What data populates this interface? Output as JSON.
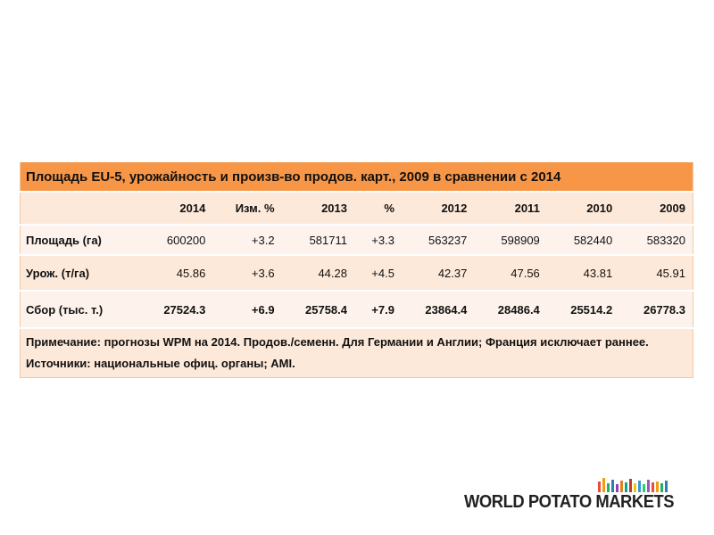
{
  "table": {
    "title": "Площадь EU-5, урожайность и произв-во продов. карт., 2009 в сравнении с 2014",
    "header": [
      "",
      "2014",
      "Изм. %",
      "2013",
      "%",
      "2012",
      "2011",
      "2010",
      "2009"
    ],
    "rows": [
      [
        "Площадь (га)",
        "600200",
        "+3.2",
        "581711",
        "+3.3",
        "563237",
        "598909",
        "582440",
        "583320"
      ],
      [
        "Урож. (т/га)",
        "45.86",
        "+3.6",
        "44.28",
        "+4.5",
        "42.37",
        "47.56",
        "43.81",
        "45.91"
      ],
      [
        "Сбор (тыс. т.)",
        "27524.3",
        "+6.9",
        "25758.4",
        "+7.9",
        "23864.4",
        "28486.4",
        "25514.2",
        "26778.3"
      ]
    ],
    "note": "Примечание: прогнозы  WPM на 2014. Продов./семенн.  Для Германии и Англии; Франция исключает раннее.  Источники:  национальные  офиц. органы;  AMI."
  },
  "logo": {
    "text": "WORLD POTATO MARKETS"
  }
}
